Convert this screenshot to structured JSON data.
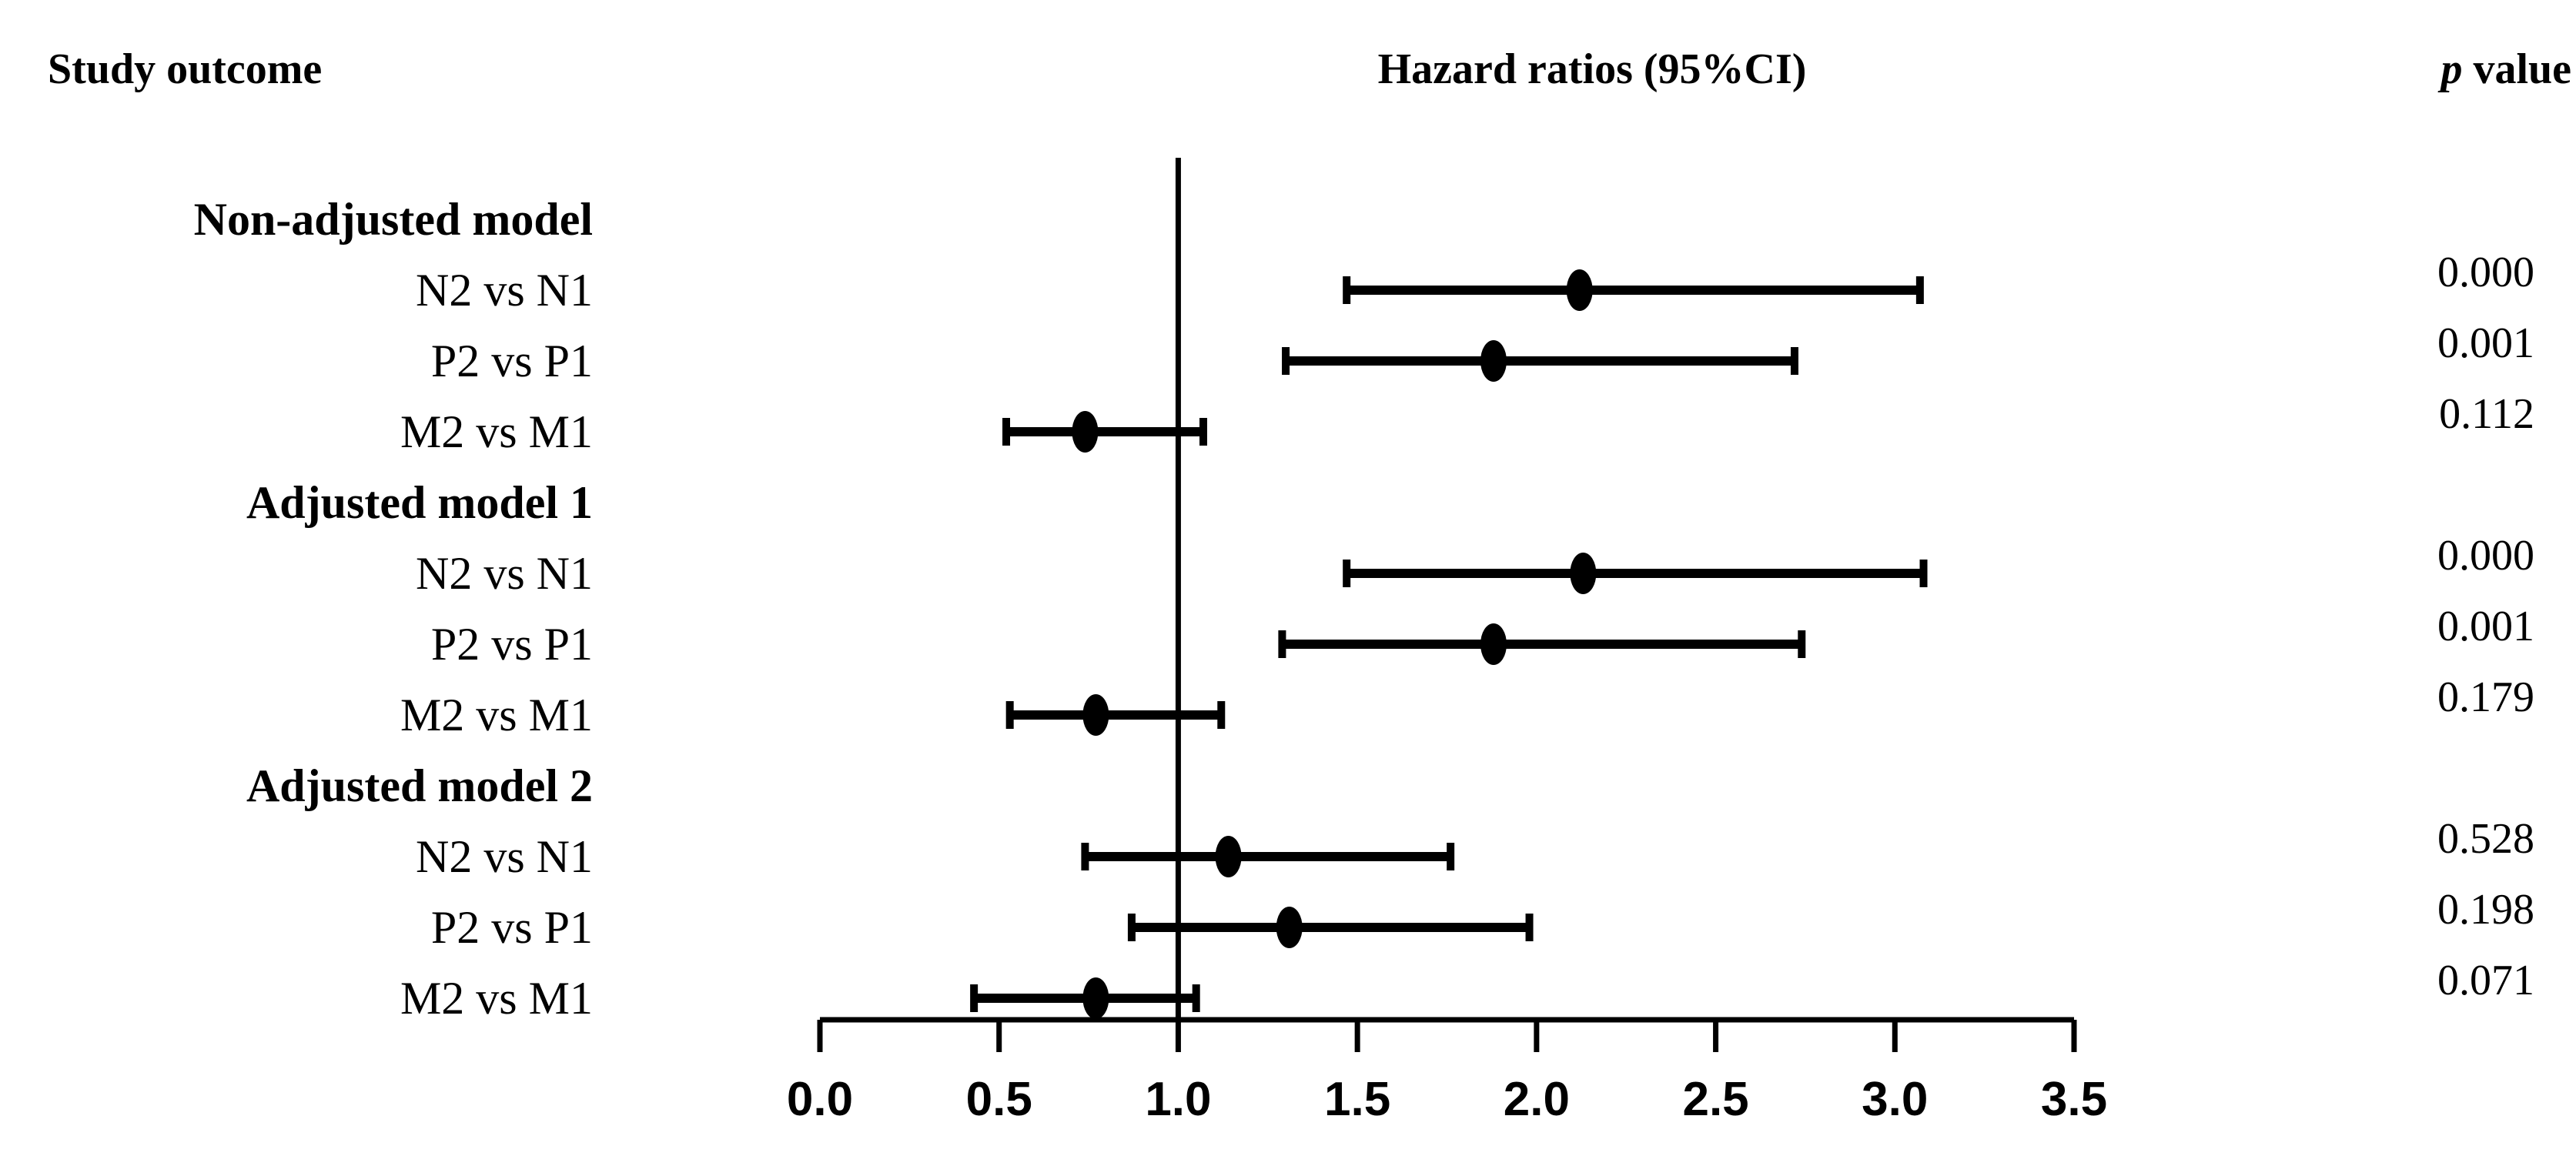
{
  "chart_data": {
    "type": "forest",
    "headers": {
      "outcome": "Study outcome",
      "effect": "Hazard ratios (95%CI)",
      "p_italic": "p",
      "p_rest": " value"
    },
    "xlim": [
      0.0,
      3.5
    ],
    "reference_line": 1.0,
    "tick_labels": [
      "0.0",
      "0.5",
      "1.0",
      "1.5",
      "2.0",
      "2.5",
      "3.0",
      "3.5"
    ],
    "groups": [
      {
        "label": "Non-adjusted model",
        "rows": [
          {
            "label": "N2 vs N1",
            "hr": 2.12,
            "lower": 1.47,
            "upper": 3.07,
            "p": "0.000"
          },
          {
            "label": "P2 vs P1",
            "hr": 1.88,
            "lower": 1.3,
            "upper": 2.72,
            "p": "0.001"
          },
          {
            "label": "M2 vs M1",
            "hr": 0.74,
            "lower": 0.52,
            "upper": 1.07,
            "p": "0.112"
          }
        ]
      },
      {
        "label": "Adjusted model 1",
        "rows": [
          {
            "label": "N2 vs N1",
            "hr": 2.13,
            "lower": 1.47,
            "upper": 3.08,
            "p": "0.000"
          },
          {
            "label": "P2 vs P1",
            "hr": 1.88,
            "lower": 1.29,
            "upper": 2.74,
            "p": "0.001"
          },
          {
            "label": "M2 vs M1",
            "hr": 0.77,
            "lower": 0.53,
            "upper": 1.12,
            "p": "0.179"
          }
        ]
      },
      {
        "label": "Adjusted model 2",
        "rows": [
          {
            "label": "N2 vs N1",
            "hr": 1.14,
            "lower": 0.74,
            "upper": 1.76,
            "p": "0.528"
          },
          {
            "label": "P2 vs P1",
            "hr": 1.31,
            "lower": 0.87,
            "upper": 1.98,
            "p": "0.198"
          },
          {
            "label": "M2 vs M1",
            "hr": 0.77,
            "lower": 0.43,
            "upper": 1.05,
            "p": "0.071"
          }
        ]
      }
    ]
  }
}
